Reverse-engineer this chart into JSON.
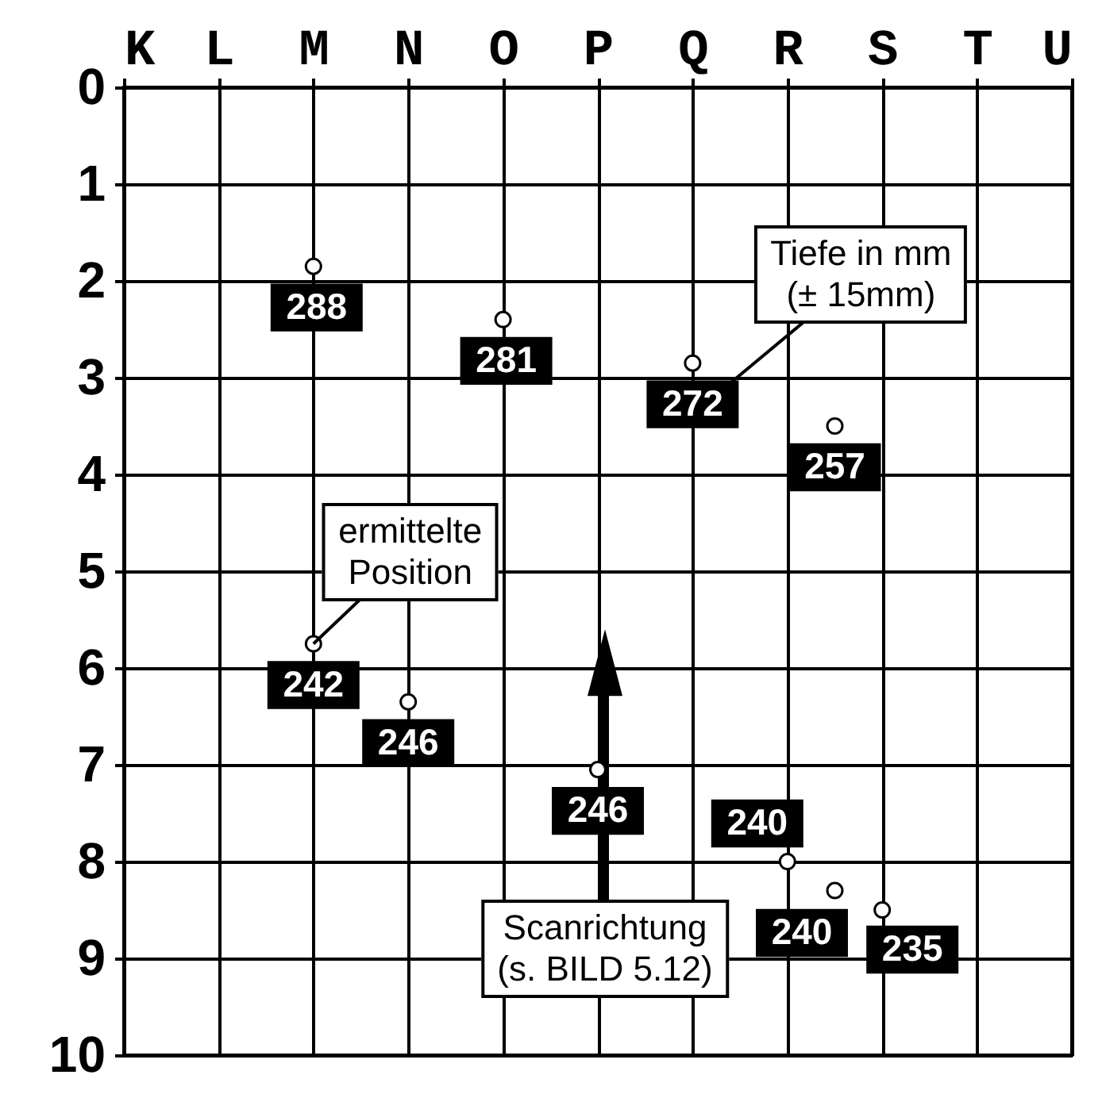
{
  "chart_data": {
    "type": "scatter",
    "categories": [
      "K",
      null,
      "L",
      null,
      "M",
      null,
      "N",
      null,
      "O",
      null,
      "P",
      null,
      "Q",
      null,
      "R",
      null,
      "S",
      null,
      "T",
      null,
      "U"
    ],
    "ylim": [
      10,
      0
    ],
    "yticks": [
      0,
      1,
      2,
      3,
      4,
      5,
      6,
      7,
      8,
      9,
      10
    ],
    "series": [
      {
        "color": "#ffffff",
        "values": [
          null,
          null,
          null,
          null,
          1.85,
          null,
          6.35,
          null,
          2.4,
          null,
          7.05,
          null,
          2.85,
          null,
          8.0,
          3.5,
          8.5,
          null,
          null,
          null,
          null
        ]
      },
      {
        "color": "#ffffff",
        "values": [
          null,
          null,
          null,
          null,
          5.75,
          null,
          null,
          null,
          null,
          null,
          null,
          null,
          null,
          null,
          null,
          8.3,
          null,
          null,
          null,
          null,
          null
        ]
      }
    ],
    "marker": "circle",
    "grid": true,
    "annotations": [
      {
        "text": "288",
        "x": "M",
        "y": 1.85
      },
      {
        "text": "281",
        "x": "O",
        "y": 2.4
      },
      {
        "text": "272",
        "x": "Q",
        "y": 2.85
      },
      {
        "text": "257",
        "y": 3.5
      },
      {
        "text": "242",
        "x": "M",
        "y": 5.75
      },
      {
        "text": "246",
        "x": "N",
        "y": 6.35
      },
      {
        "text": "246",
        "x": "P",
        "y": 7.05
      },
      {
        "text": "240",
        "x": "R",
        "y": 8.0
      },
      "240",
      {
        "text": "235",
        "x": "S",
        "y": 8.5
      },
      {
        "text": "Tiefe in mm\n(± 15mm)",
        "x": "Q",
        "y": 2.85
      },
      {
        "text": "ermittelte\nPosition",
        "x": "M",
        "y": 5.75
      },
      "Scanrichtung\n(s. BILD 5.12)"
    ]
  }
}
